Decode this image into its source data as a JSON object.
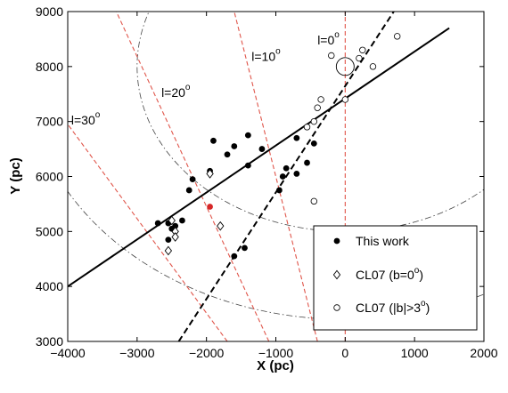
{
  "chart_data": {
    "type": "scatter",
    "xlabel": "X (pc)",
    "ylabel": "Y (pc)",
    "xlim": [
      -4000,
      2000
    ],
    "ylim": [
      3000,
      9000
    ],
    "xticks": [
      "−4000",
      "−3000",
      "−2000",
      "−1000",
      "0",
      "1000",
      "2000"
    ],
    "yticks": [
      "3000",
      "4000",
      "5000",
      "6000",
      "7000",
      "8000",
      "9000"
    ],
    "legend_position": "bottom-right",
    "series": [
      {
        "name": "This work",
        "marker": "filled-circle",
        "points": [
          [
            -2700,
            5150
          ],
          [
            -2550,
            4850
          ],
          [
            -2450,
            5100
          ],
          [
            -2500,
            5050
          ],
          [
            -2350,
            5200
          ],
          [
            -2550,
            5150
          ],
          [
            -2250,
            5750
          ],
          [
            -2200,
            5950
          ],
          [
            -1950,
            6100
          ],
          [
            -1900,
            6650
          ],
          [
            -1700,
            6400
          ],
          [
            -1600,
            6550
          ],
          [
            -1400,
            6750
          ],
          [
            -1400,
            6200
          ],
          [
            -1200,
            6500
          ],
          [
            -1600,
            4550
          ],
          [
            -1450,
            4700
          ],
          [
            -950,
            5750
          ],
          [
            -900,
            6000
          ],
          [
            -850,
            6150
          ],
          [
            -700,
            6050
          ],
          [
            -700,
            6700
          ],
          [
            -550,
            6250
          ],
          [
            -450,
            6600
          ]
        ]
      },
      {
        "name": "CL07 (b=0°)",
        "marker": "open-diamond",
        "points": [
          [
            -2500,
            5200
          ],
          [
            -2450,
            5000
          ],
          [
            -2450,
            4900
          ],
          [
            -2550,
            4650
          ],
          [
            -1950,
            6050
          ],
          [
            -1800,
            5100
          ]
        ]
      },
      {
        "name": "CL07 (|b|>3°)",
        "marker": "open-circle",
        "points": [
          [
            -550,
            6900
          ],
          [
            -450,
            7000
          ],
          [
            -400,
            7250
          ],
          [
            -350,
            7400
          ],
          [
            -450,
            5550
          ],
          [
            0,
            7400
          ],
          [
            -200,
            8200
          ],
          [
            200,
            8150
          ],
          [
            250,
            8300
          ],
          [
            400,
            8000
          ],
          [
            750,
            8550
          ]
        ]
      }
    ],
    "special_points": [
      {
        "point": [
          -1950,
          5450
        ],
        "marker": "filled-circle",
        "color": "#d62728"
      }
    ],
    "fits": [
      {
        "style": "solid",
        "x": [
          -4000,
          1500
        ],
        "y": [
          4000,
          8700
        ]
      },
      {
        "style": "dashed",
        "x": [
          -2400,
          700
        ],
        "y": [
          3000,
          9000
        ]
      }
    ],
    "sun": {
      "point": [
        0,
        8000
      ]
    },
    "longitude_lines": [
      {
        "label": "l=0°",
        "label_text": "l=0",
        "degree": "o",
        "label_at": [
          -400,
          8400
        ],
        "x": [
          0,
          0
        ],
        "y": [
          3000,
          9000
        ]
      },
      {
        "label": "l=10°",
        "label_text": "l=10",
        "degree": "o",
        "label_at": [
          -1350,
          8100
        ],
        "x": [
          -400,
          -1600
        ],
        "y": [
          3000,
          9000
        ]
      },
      {
        "label": "l=20°",
        "label_text": "l=20",
        "degree": "o",
        "label_at": [
          -2650,
          7450
        ],
        "x": [
          -1100,
          -3300
        ],
        "y": [
          3000,
          9000
        ]
      },
      {
        "label": "l=30°",
        "label_text": "l=30",
        "degree": "o",
        "label_at": [
          -3950,
          6950
        ],
        "x": [
          -1700,
          -4000
        ],
        "y": [
          3000,
          6950
        ]
      }
    ],
    "circles": [
      {
        "style": "dash-dot",
        "center": [
          0,
          8000
        ],
        "radius": 3000
      },
      {
        "style": "dash-dot",
        "center": [
          0,
          8000
        ],
        "radius": 4600
      }
    ],
    "colors": {
      "fit_line": "#000000",
      "longitude_line": "#e0554a",
      "circle": "#444444",
      "axis": "#000000"
    }
  }
}
